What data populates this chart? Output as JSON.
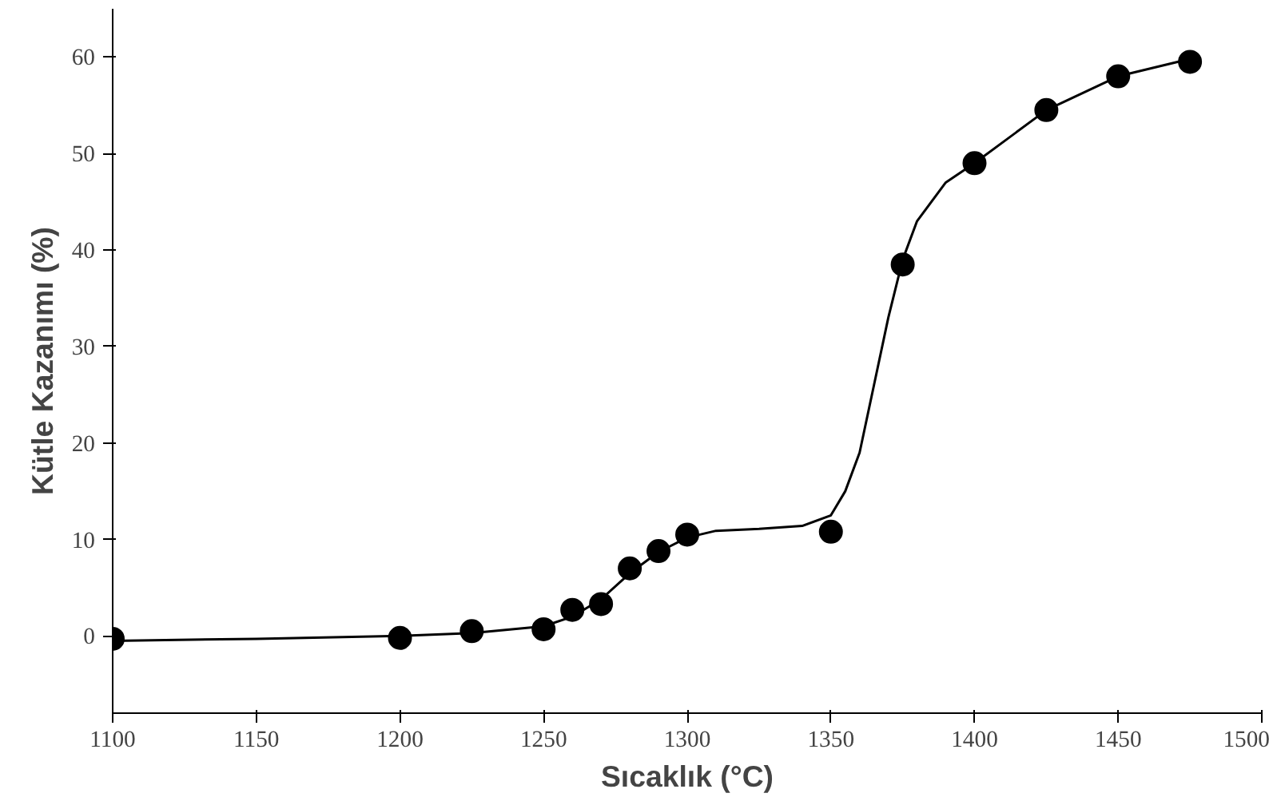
{
  "chart_data": {
    "type": "scatter",
    "xlabel": "Sıcaklık (°C)",
    "ylabel": "Kütle Kazanımı (%)",
    "xlim": [
      1100,
      1500
    ],
    "ylim": [
      -8,
      65
    ],
    "xticks": [
      1100,
      1150,
      1200,
      1250,
      1300,
      1350,
      1400,
      1450,
      1500
    ],
    "yticks": [
      0,
      10,
      20,
      30,
      40,
      50,
      60
    ],
    "grid": false,
    "series": [
      {
        "marker": "circle",
        "color": "#000000",
        "x": [
          1100,
          1200,
          1225,
          1250,
          1260,
          1270,
          1280,
          1290,
          1300,
          1350,
          1375,
          1400,
          1425,
          1450,
          1475
        ],
        "values": [
          -0.3,
          -0.2,
          0.5,
          0.7,
          2.7,
          3.3,
          7,
          8.8,
          10.5,
          10.8,
          38.5,
          49,
          54.5,
          58,
          59.5
        ]
      },
      {
        "type": "line",
        "marker": "none",
        "color": "#000000",
        "line_style": "solid",
        "x": [
          1100,
          1150,
          1200,
          1225,
          1250,
          1260,
          1270,
          1280,
          1290,
          1300,
          1310,
          1325,
          1340,
          1350,
          1355,
          1360,
          1365,
          1370,
          1375,
          1380,
          1390,
          1400,
          1425,
          1450,
          1475
        ],
        "values": [
          -0.5,
          -0.3,
          0,
          0.3,
          1,
          2,
          3.8,
          6.5,
          8.7,
          10.2,
          10.9,
          11.1,
          11.4,
          12.5,
          15,
          19,
          26,
          33,
          39,
          43,
          47,
          49,
          54.5,
          58,
          59.8
        ]
      }
    ]
  }
}
